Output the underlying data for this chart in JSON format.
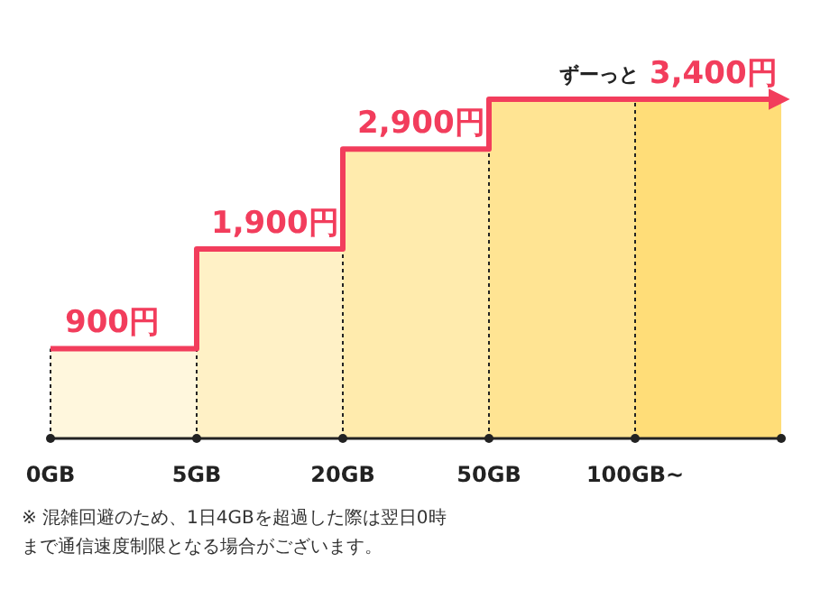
{
  "chart_data": {
    "type": "step",
    "categories": [
      "0GB",
      "5GB",
      "20GB",
      "50GB",
      "100GB~"
    ],
    "series": [
      {
        "type": "bar",
        "colors": [
          "#fff7dd",
          "#fff1c6",
          "#ffebad",
          "#ffe493",
          "#ffdd78"
        ],
        "values": [
          900,
          1900,
          2900,
          3400,
          3400
        ]
      },
      {
        "color": "#f23d5c",
        "values": [
          900,
          1900,
          2900,
          3400,
          3400
        ],
        "value_labels": [
          "900円",
          "1,900円",
          "2,900円",
          null,
          "3,400円"
        ]
      }
    ],
    "grid": "x",
    "tick_labels": "x",
    "annotations": [
      {
        "text": "ずーっと",
        "x": "100GB~",
        "y": 3400
      },
      "※ 混雑回避のため、1日4GBを超過した際は翌日0時まで通信速度制限となる場合がございます。"
    ]
  }
}
